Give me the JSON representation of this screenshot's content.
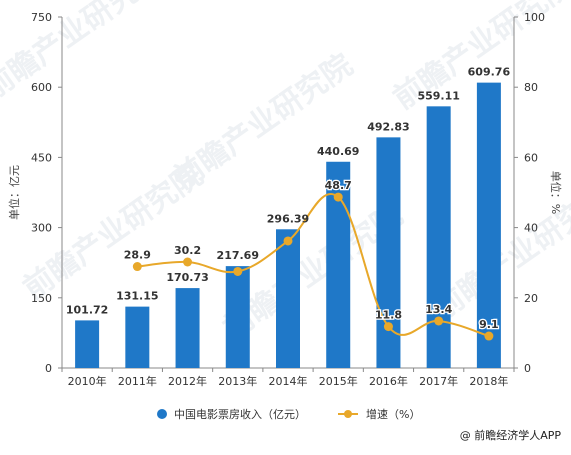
{
  "chart_data": {
    "type": "bar",
    "categories": [
      "2010年",
      "2011年",
      "2012年",
      "2013年",
      "2014年",
      "2015年",
      "2016年",
      "2017年",
      "2018年"
    ],
    "series": [
      {
        "name": "中国电影票房收入（亿元）",
        "type": "bar",
        "axis": "left",
        "values": [
          101.72,
          131.15,
          170.73,
          217.69,
          296.39,
          440.69,
          492.83,
          559.11,
          609.76
        ],
        "labels": [
          "101.72",
          "131.15",
          "170.73",
          "217.69",
          "296.39",
          "440.69",
          "492.83",
          "559.11",
          "609.76"
        ],
        "color": "#1f78c8"
      },
      {
        "name": "增速（%）",
        "type": "line",
        "axis": "right",
        "values": [
          null,
          28.9,
          30.2,
          27.5,
          36.2,
          48.7,
          11.8,
          13.4,
          9.1
        ],
        "labels": [
          "",
          "28.9",
          "30.2",
          "",
          "",
          "48.7",
          "11.8",
          "13.4",
          "9.1"
        ],
        "color": "#e8a82a"
      }
    ],
    "y_left": {
      "label": "单位：亿元",
      "min": 0,
      "max": 750,
      "ticks": [
        "0",
        "150",
        "300",
        "450",
        "600",
        "750"
      ]
    },
    "y_right": {
      "label": "单位：%",
      "min": 0,
      "max": 100,
      "ticks": [
        "0",
        "20",
        "40",
        "60",
        "80",
        "100"
      ]
    },
    "grid": false,
    "legend_position": "bottom"
  },
  "source": "@ 前瞻经济学人APP",
  "watermark_text": "前瞻产业研究院"
}
